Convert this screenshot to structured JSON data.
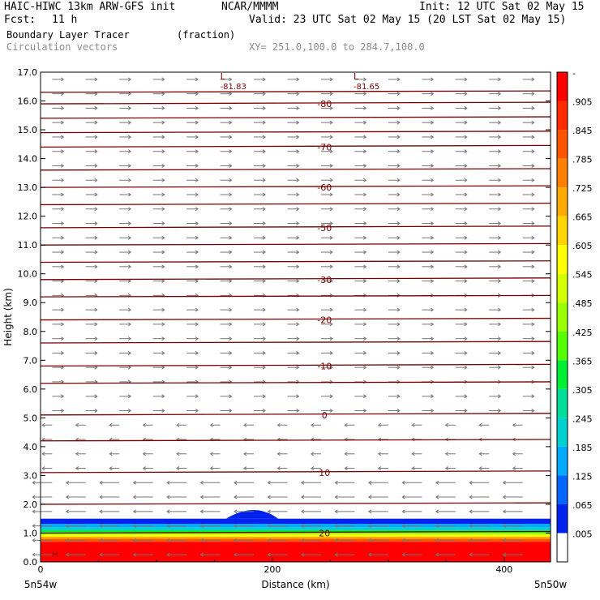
{
  "header": {
    "model": "HAIC-HIWC 13km ARW-GFS init",
    "org": "NCAR/MMMM",
    "init": "Init: 12 UTC Sat 02 May 15",
    "fcst_label": "Fcst:",
    "fcst_value": "11 h",
    "valid": "Valid: 23 UTC Sat 02 May 15 (20 LST Sat 02 May 15)",
    "field": "Boundary Layer Tracer",
    "field_units": "(fraction)",
    "vectors": "Circulation vectors",
    "xsect": "XY= 251.0,100.0 to 284.7,100.0"
  },
  "chart_data": {
    "type": "heatmap",
    "xlabel": "Distance (km)",
    "ylabel": "Height (km)",
    "xlim": [
      0,
      440
    ],
    "ylim": [
      0,
      17
    ],
    "x_ticks": [
      "0",
      "200",
      "400"
    ],
    "x_tick_values": [
      0,
      200,
      400
    ],
    "y_ticks": [
      "0.0",
      "1.0",
      "2.0",
      "3.0",
      "4.0",
      "5.0",
      "6.0",
      "7.0",
      "8.0",
      "9.0",
      "10.0",
      "11.0",
      "12.0",
      "13.0",
      "14.0",
      "15.0",
      "16.0",
      "17.0"
    ],
    "endpoint_labels": {
      "left": "5n54w",
      "right": "5n50w"
    },
    "colorbar": {
      "labels": [
        "-",
        ".905",
        ".845",
        ".785",
        ".725",
        ".665",
        ".605",
        ".545",
        ".485",
        ".425",
        ".365",
        ".305",
        ".245",
        ".185",
        ".125",
        ".065",
        ".005"
      ],
      "colors": [
        "#ff0000",
        "#ff2a00",
        "#ff5500",
        "#ff7f00",
        "#ffaa00",
        "#ffd400",
        "#ffff00",
        "#d4ff00",
        "#99ff00",
        "#55ff00",
        "#00ee33",
        "#00dd99",
        "#00d0d0",
        "#00aaff",
        "#0066ff",
        "#0022ee",
        "#ffffff"
      ]
    },
    "isotherms": [
      {
        "label": "-80",
        "height_km": 15.9
      },
      {
        "label": "-70",
        "height_km": 14.4
      },
      {
        "label": "-60",
        "height_km": 13.0
      },
      {
        "label": "-50",
        "height_km": 11.6
      },
      {
        "label": "-30",
        "height_km": 9.8
      },
      {
        "label": "-20",
        "height_km": 8.4
      },
      {
        "label": "-10",
        "height_km": 6.8
      },
      {
        "label": "0",
        "height_km": 5.1
      },
      {
        "label": "10",
        "height_km": 3.1
      },
      {
        "label": "20",
        "height_km": 1.0
      }
    ],
    "minima": [
      {
        "symbol": "L",
        "value": "-81.83",
        "x_km": 155
      },
      {
        "symbol": "L",
        "value": "-81.65",
        "x_km": 270
      }
    ],
    "high_marker": "H",
    "tracer_layer_top_km": 1.5
  }
}
